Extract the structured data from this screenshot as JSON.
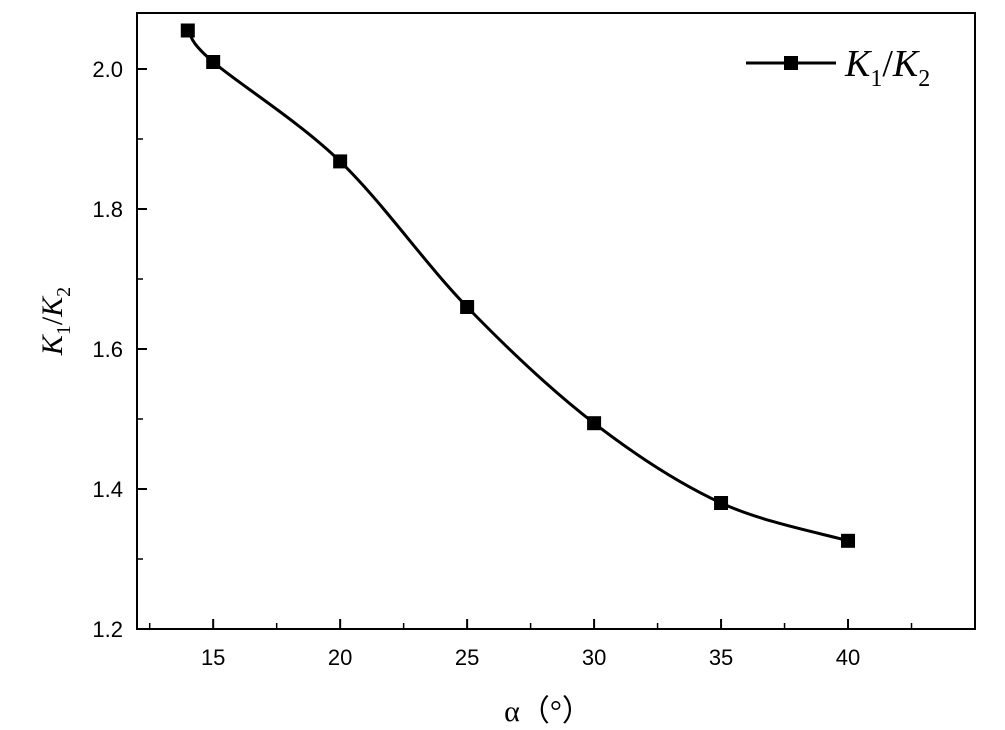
{
  "chart_data": {
    "type": "line",
    "title": "",
    "xlabel": "α（°）",
    "ylabel": {
      "base1": "K",
      "sub1": "1",
      "sep": "/",
      "base2": "K",
      "sub2": "2"
    },
    "xlim": [
      12,
      45
    ],
    "ylim": [
      1.2,
      2.08
    ],
    "x_ticks": [
      "15",
      "20",
      "25",
      "30",
      "35",
      "40"
    ],
    "y_ticks": [
      "1.2",
      "1.4",
      "1.6",
      "1.8",
      "2.0"
    ],
    "grid": false,
    "legend_position": "top-right",
    "series": [
      {
        "name": {
          "base1": "K",
          "sub1": "1",
          "sep": "/",
          "base2": "K",
          "sub2": "2"
        },
        "marker": "square",
        "color": "#000000",
        "smooth": true,
        "x": [
          14,
          15,
          20,
          25,
          30,
          35,
          40
        ],
        "y": [
          2.055,
          2.01,
          1.868,
          1.66,
          1.494,
          1.38,
          1.326
        ]
      }
    ]
  }
}
